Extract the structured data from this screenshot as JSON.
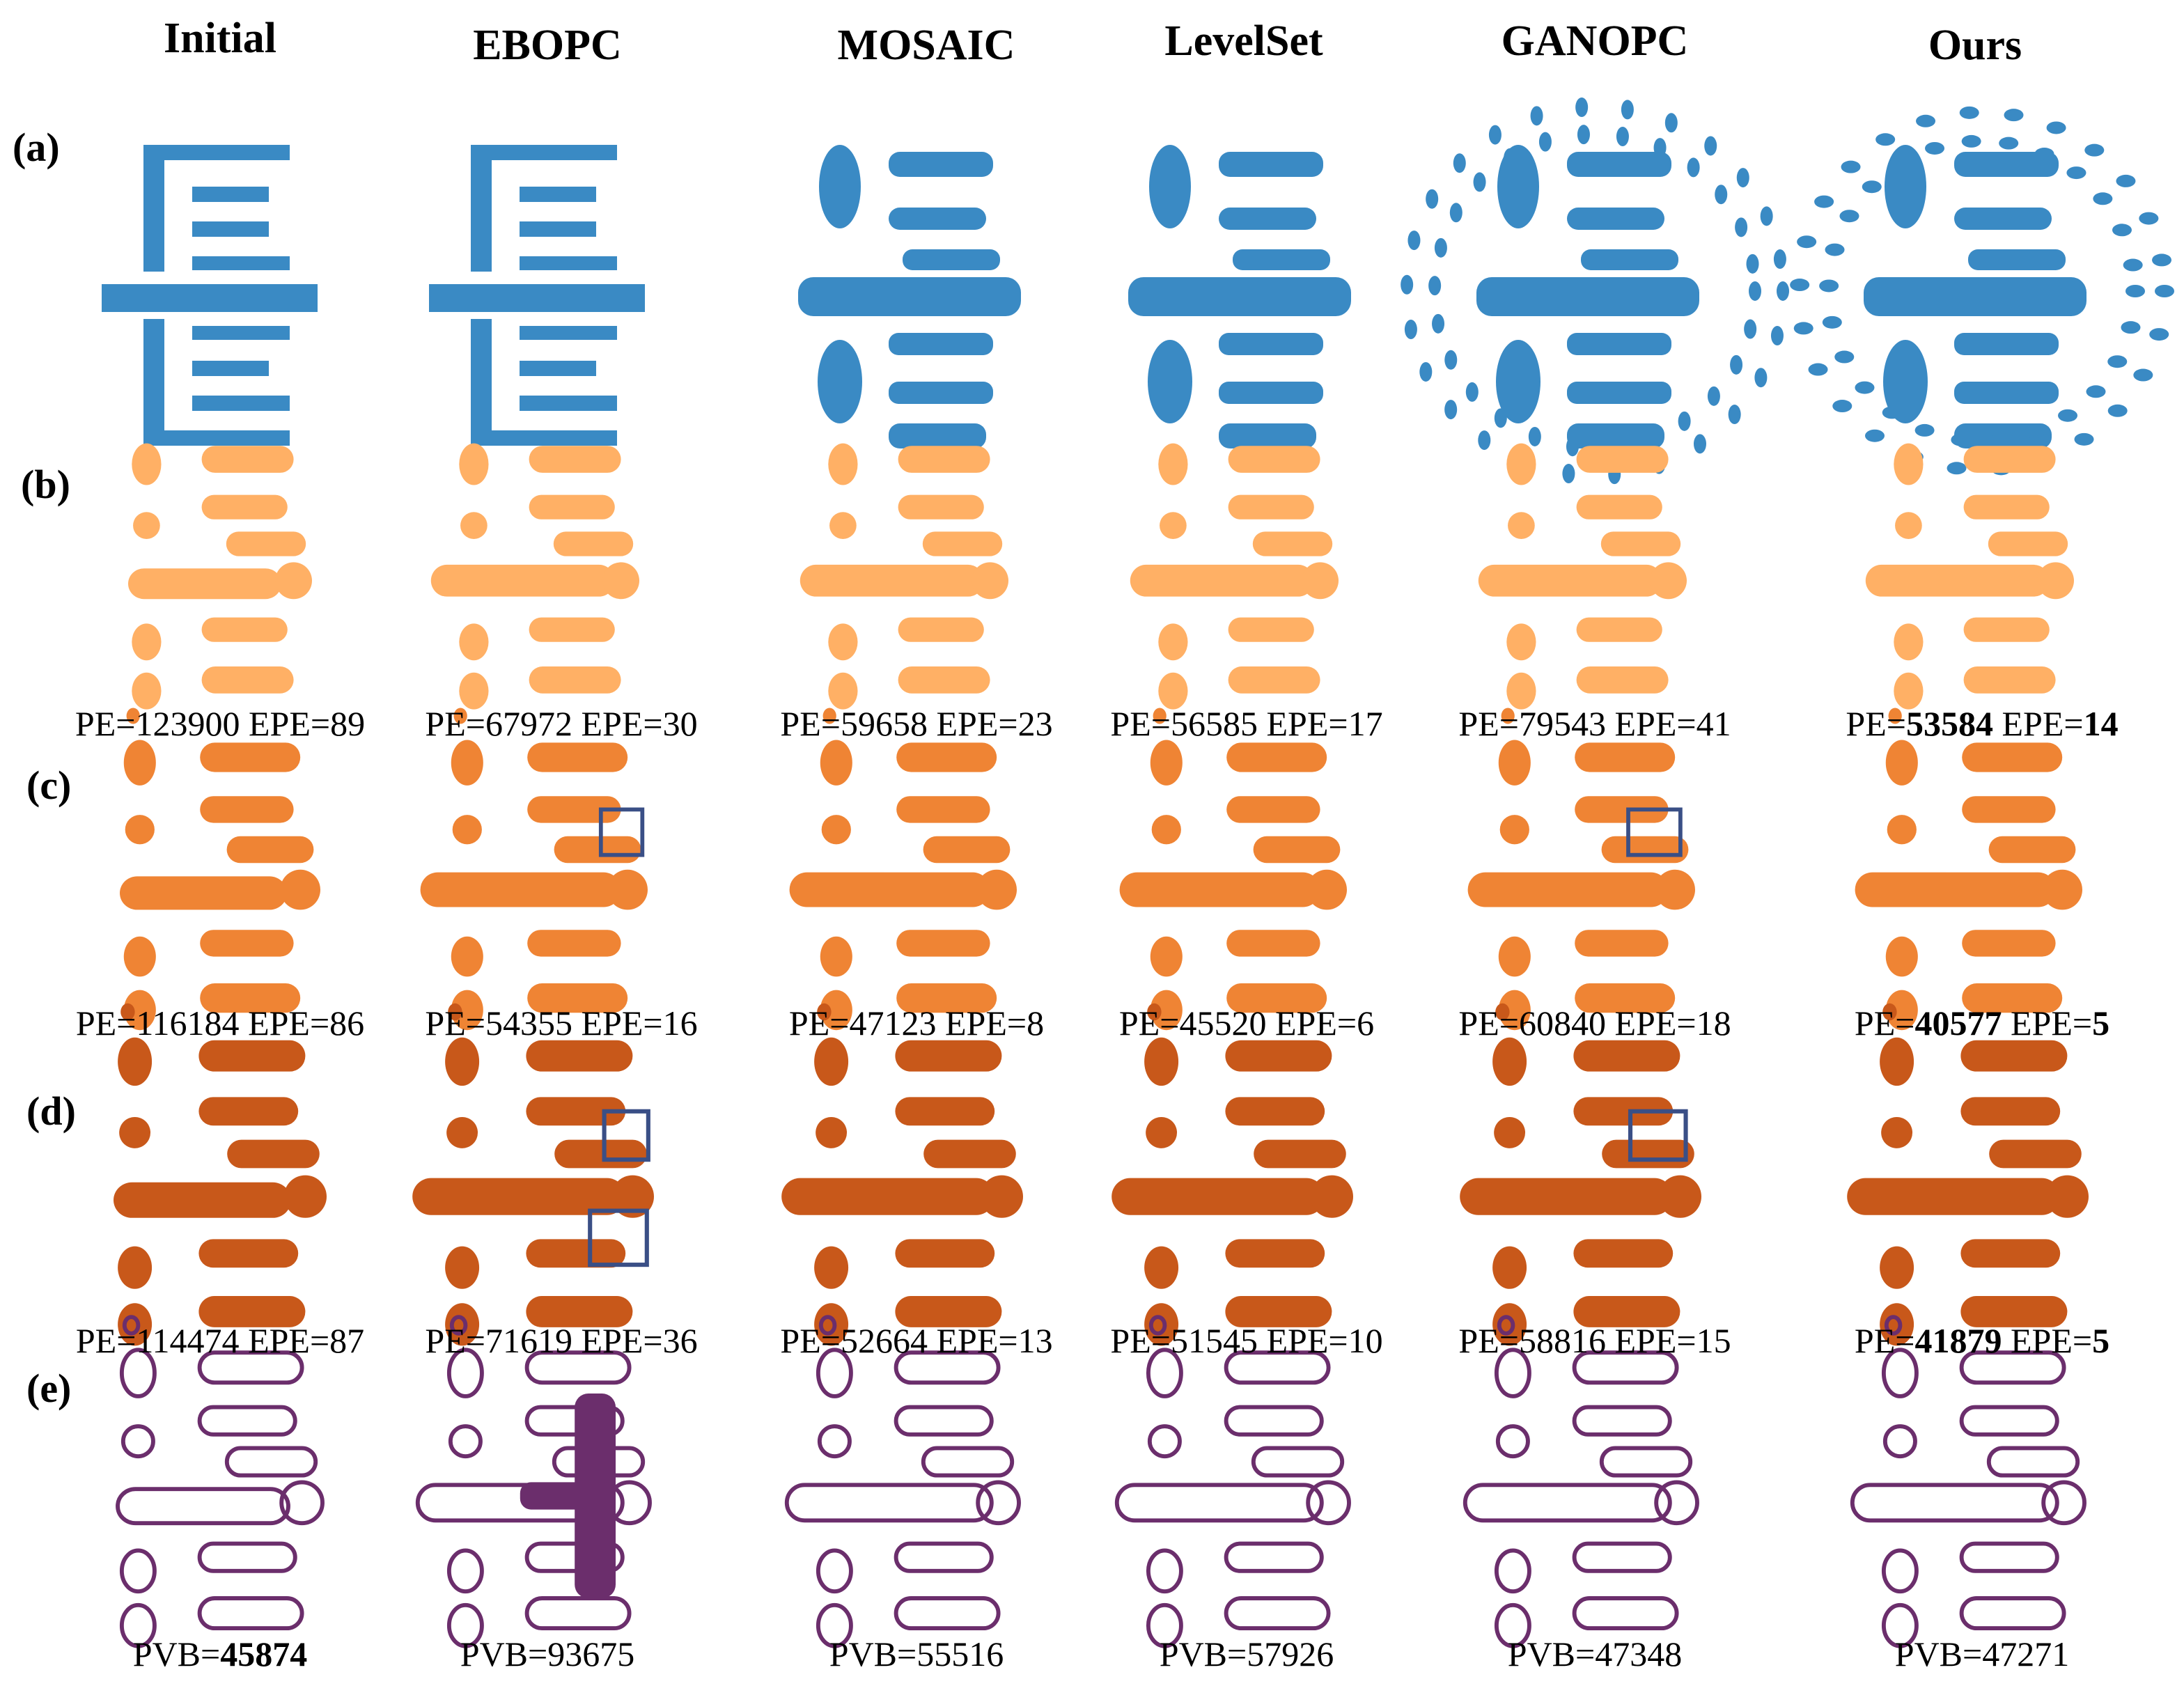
{
  "columns": [
    "Initial",
    "EBOPC",
    "MOSAIC",
    "LevelSet",
    "GANOPC",
    "Ours"
  ],
  "rows": [
    "(a)",
    "(b)",
    "(c)",
    "(d)",
    "(e)"
  ],
  "metrics": {
    "b": [
      {
        "pe": "123900",
        "epe": "89",
        "bold": false
      },
      {
        "pe": "67972",
        "epe": "30",
        "bold": false
      },
      {
        "pe": "59658",
        "epe": "23",
        "bold": false
      },
      {
        "pe": "56585",
        "epe": "17",
        "bold": false
      },
      {
        "pe": "79543",
        "epe": "41",
        "bold": false
      },
      {
        "pe": "53584",
        "epe": "14",
        "bold": true
      }
    ],
    "c": [
      {
        "pe": "116184",
        "epe": "86",
        "bold": false
      },
      {
        "pe": "54355",
        "epe": "16",
        "bold": false
      },
      {
        "pe": "47123",
        "epe": "8",
        "bold": false
      },
      {
        "pe": "45520",
        "epe": "6",
        "bold": false
      },
      {
        "pe": "60840",
        "epe": "18",
        "bold": false
      },
      {
        "pe": "40577",
        "epe": "5",
        "bold": true
      }
    ],
    "d": [
      {
        "pe": "114474",
        "epe": "87",
        "bold": false
      },
      {
        "pe": "71619",
        "epe": "36",
        "bold": false
      },
      {
        "pe": "52664",
        "epe": "13",
        "bold": false
      },
      {
        "pe": "51545",
        "epe": "10",
        "bold": false
      },
      {
        "pe": "58816",
        "epe": "15",
        "bold": false
      },
      {
        "pe": "41879",
        "epe": "5",
        "bold": true
      }
    ],
    "e": [
      {
        "pvb": "45874",
        "bold": true
      },
      {
        "pvb": "93675",
        "bold": false
      },
      {
        "pvb": "55516",
        "bold": false
      },
      {
        "pvb": "57926",
        "bold": false
      },
      {
        "pvb": "47348",
        "bold": false
      },
      {
        "pvb": "47271",
        "bold": false
      }
    ]
  },
  "labels": {
    "pe": "PE=",
    "epe": " EPE=",
    "pvb": "PVB="
  },
  "colors": {
    "mask": "#3a8ac4",
    "print_nominal": "#ffb065",
    "print_inner": "#ef8434",
    "print_outer": "#c8581a",
    "pv_band": "#6b2e6c",
    "highlight_box": "#3a4f86"
  }
}
